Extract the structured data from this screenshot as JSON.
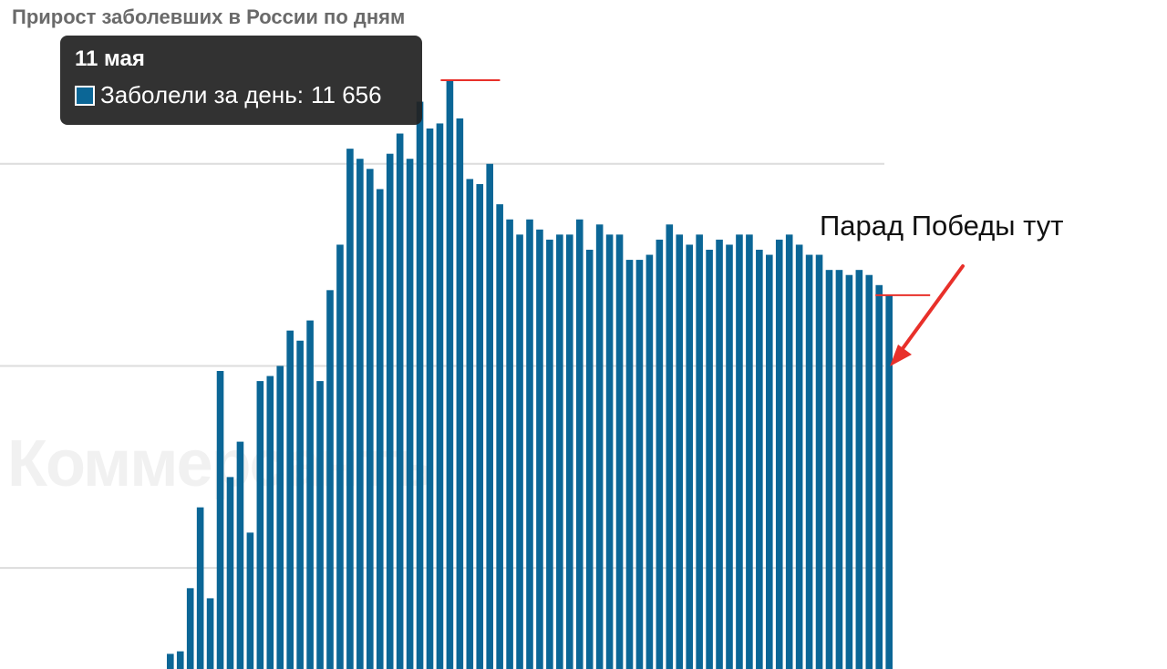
{
  "page": {
    "watermark": "Коммерсантъ"
  },
  "tooltip": {
    "date": "11 мая",
    "label": "Заболели за день:",
    "value": "11 656",
    "swatch_color": "#0b6696"
  },
  "annotation": {
    "text": "Парад Победы тут",
    "color": "#e8302a"
  },
  "chart_data": {
    "type": "bar",
    "title": "Прирост заболевших в России по дням",
    "xlabel": "",
    "ylabel": "",
    "ylim": [
      0,
      12000
    ],
    "grid": true,
    "legend": "none",
    "bar_color": "#0b6696",
    "gridline_values": [
      2000,
      6000,
      10000
    ],
    "values": [
      300,
      350,
      1600,
      3200,
      1400,
      5900,
      3800,
      4500,
      2700,
      5700,
      5800,
      6000,
      6700,
      6500,
      6900,
      5700,
      7500,
      8400,
      10300,
      10100,
      9900,
      9500,
      10200,
      10600,
      10100,
      11231,
      10700,
      10800,
      11656,
      10900,
      9700,
      9600,
      10000,
      9200,
      8900,
      8600,
      8900,
      8700,
      8500,
      8600,
      8600,
      8900,
      8300,
      8800,
      8600,
      8600,
      8100,
      8100,
      8200,
      8500,
      8800,
      8600,
      8400,
      8600,
      8300,
      8500,
      8400,
      8600,
      8600,
      8300,
      8200,
      8500,
      8600,
      8400,
      8200,
      8200,
      7900,
      7900,
      7800,
      7900,
      7800,
      7600,
      7400
    ],
    "highlights": [
      {
        "index": 28,
        "value": 11656,
        "label": "11 мая"
      },
      {
        "index": 72,
        "value": 7400
      }
    ]
  }
}
